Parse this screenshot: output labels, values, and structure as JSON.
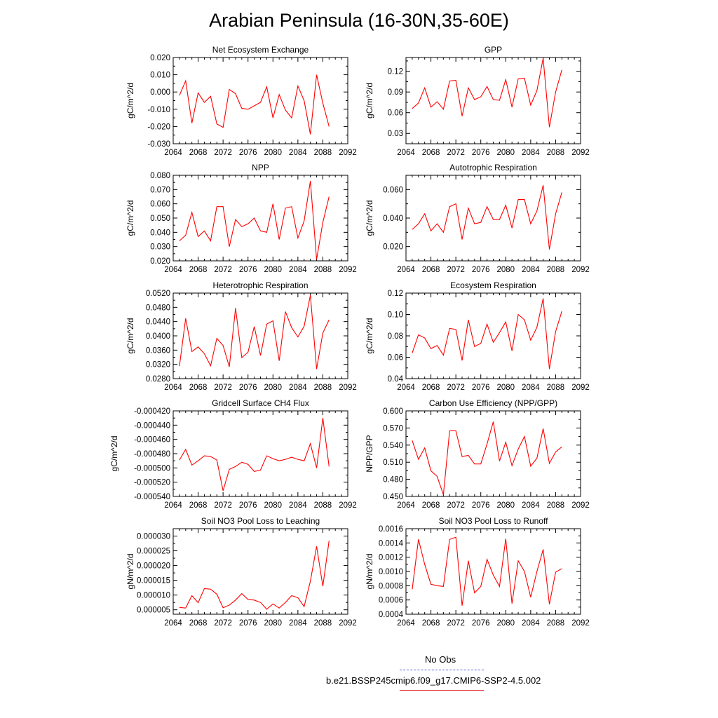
{
  "page": {
    "title": "Arabian Peninsula (16-30N,35-60E)"
  },
  "legend": {
    "obs_label": "No Obs",
    "obs_color": "#4b55d6",
    "model_label": "b.e21.BSSP245cmip6.f09_g17.CMIP6-SSP2-4.5.002",
    "model_color": "#e0303a"
  },
  "chart_data": [
    {
      "type": "line",
      "title": "Net Ecosystem Exchange",
      "ylabel": "gC/m^2/d",
      "xlim": [
        2064,
        2092
      ],
      "ylim": [
        -0.03,
        0.02
      ],
      "yticks": [
        -0.03,
        -0.02,
        -0.01,
        0.0,
        0.01,
        0.02
      ],
      "ytick_labels": [
        "-0.030",
        "-0.020",
        "-0.010",
        "0.000",
        "0.010",
        "0.020"
      ],
      "xticks": [
        2064,
        2068,
        2072,
        2076,
        2080,
        2084,
        2088,
        2092
      ],
      "x": [
        2065,
        2066,
        2067,
        2068,
        2069,
        2070,
        2071,
        2072,
        2073,
        2074,
        2075,
        2076,
        2077,
        2078,
        2079,
        2080,
        2081,
        2082,
        2083,
        2084,
        2085,
        2086,
        2087,
        2088,
        2089
      ],
      "series": [
        {
          "color": "#ff0000",
          "values": [
            -0.002,
            0.0065,
            -0.018,
            -0.0005,
            -0.006,
            -0.0025,
            -0.0185,
            -0.0205,
            0.0015,
            -0.001,
            -0.0095,
            -0.01,
            -0.008,
            -0.006,
            0.003,
            -0.015,
            -0.0015,
            -0.0105,
            -0.015,
            0.0035,
            -0.005,
            -0.0245,
            0.01,
            -0.0065,
            -0.02
          ]
        }
      ]
    },
    {
      "type": "line",
      "title": "GPP",
      "ylabel": "gC/m^2/d",
      "xlim": [
        2064,
        2092
      ],
      "ylim": [
        0.015,
        0.14
      ],
      "yticks": [
        0.03,
        0.06,
        0.09,
        0.12
      ],
      "ytick_labels": [
        "0.03",
        "0.06",
        "0.09",
        "0.12"
      ],
      "xticks": [
        2064,
        2068,
        2072,
        2076,
        2080,
        2084,
        2088,
        2092
      ],
      "x": [
        2065,
        2066,
        2067,
        2068,
        2069,
        2070,
        2071,
        2072,
        2073,
        2074,
        2075,
        2076,
        2077,
        2078,
        2079,
        2080,
        2081,
        2082,
        2083,
        2084,
        2085,
        2086,
        2087,
        2088,
        2089
      ],
      "series": [
        {
          "color": "#ff0000",
          "values": [
            0.066,
            0.074,
            0.096,
            0.068,
            0.076,
            0.065,
            0.106,
            0.107,
            0.055,
            0.096,
            0.079,
            0.083,
            0.098,
            0.079,
            0.078,
            0.108,
            0.068,
            0.109,
            0.11,
            0.071,
            0.092,
            0.139,
            0.039,
            0.09,
            0.122
          ]
        }
      ]
    },
    {
      "type": "line",
      "title": "NPP",
      "ylabel": "gC/m^2/d",
      "xlim": [
        2064,
        2092
      ],
      "ylim": [
        0.02,
        0.08
      ],
      "yticks": [
        0.02,
        0.03,
        0.04,
        0.05,
        0.06,
        0.07,
        0.08
      ],
      "ytick_labels": [
        "0.020",
        "0.030",
        "0.040",
        "0.050",
        "0.060",
        "0.070",
        "0.080"
      ],
      "xticks": [
        2064,
        2068,
        2072,
        2076,
        2080,
        2084,
        2088,
        2092
      ],
      "x": [
        2065,
        2066,
        2067,
        2068,
        2069,
        2070,
        2071,
        2072,
        2073,
        2074,
        2075,
        2076,
        2077,
        2078,
        2079,
        2080,
        2081,
        2082,
        2083,
        2084,
        2085,
        2086,
        2087,
        2088,
        2089
      ],
      "series": [
        {
          "color": "#ff0000",
          "values": [
            0.034,
            0.038,
            0.054,
            0.037,
            0.041,
            0.034,
            0.058,
            0.058,
            0.03,
            0.049,
            0.044,
            0.046,
            0.05,
            0.041,
            0.04,
            0.06,
            0.035,
            0.057,
            0.058,
            0.036,
            0.048,
            0.076,
            0.021,
            0.047,
            0.065
          ]
        }
      ]
    },
    {
      "type": "line",
      "title": "Autotrophic Respiration",
      "ylabel": "gC/m^2/d",
      "xlim": [
        2064,
        2092
      ],
      "ylim": [
        0.01,
        0.07
      ],
      "yticks": [
        0.02,
        0.04,
        0.06
      ],
      "ytick_labels": [
        "0.020",
        "0.040",
        "0.060"
      ],
      "xticks": [
        2064,
        2068,
        2072,
        2076,
        2080,
        2084,
        2088,
        2092
      ],
      "x": [
        2065,
        2066,
        2067,
        2068,
        2069,
        2070,
        2071,
        2072,
        2073,
        2074,
        2075,
        2076,
        2077,
        2078,
        2079,
        2080,
        2081,
        2082,
        2083,
        2084,
        2085,
        2086,
        2087,
        2088,
        2089
      ],
      "series": [
        {
          "color": "#ff0000",
          "values": [
            0.032,
            0.036,
            0.043,
            0.031,
            0.036,
            0.03,
            0.048,
            0.05,
            0.025,
            0.047,
            0.036,
            0.037,
            0.048,
            0.039,
            0.039,
            0.049,
            0.033,
            0.053,
            0.053,
            0.036,
            0.045,
            0.063,
            0.018,
            0.043,
            0.058
          ]
        }
      ]
    },
    {
      "type": "line",
      "title": "Heterotrophic Respiration",
      "ylabel": "gC/m^2/d",
      "xlim": [
        2064,
        2092
      ],
      "ylim": [
        0.028,
        0.052
      ],
      "yticks": [
        0.028,
        0.032,
        0.036,
        0.04,
        0.044,
        0.048,
        0.052
      ],
      "ytick_labels": [
        "0.0280",
        "0.0320",
        "0.0360",
        "0.0400",
        "0.0440",
        "0.0480",
        "0.0520"
      ],
      "xticks": [
        2064,
        2068,
        2072,
        2076,
        2080,
        2084,
        2088,
        2092
      ],
      "x": [
        2065,
        2066,
        2067,
        2068,
        2069,
        2070,
        2071,
        2072,
        2073,
        2074,
        2075,
        2076,
        2077,
        2078,
        2079,
        2080,
        2081,
        2082,
        2083,
        2084,
        2085,
        2086,
        2087,
        2088,
        2089
      ],
      "series": [
        {
          "color": "#ff0000",
          "values": [
            0.0315,
            0.0449,
            0.0356,
            0.0369,
            0.035,
            0.0316,
            0.0393,
            0.0373,
            0.0313,
            0.0478,
            0.0339,
            0.0354,
            0.0426,
            0.0345,
            0.0433,
            0.0442,
            0.033,
            0.0468,
            0.0423,
            0.0397,
            0.0427,
            0.0514,
            0.0307,
            0.0408,
            0.0445
          ]
        }
      ]
    },
    {
      "type": "line",
      "title": "Ecosystem Respiration",
      "ylabel": "gC/m^2/d",
      "xlim": [
        2064,
        2092
      ],
      "ylim": [
        0.04,
        0.12
      ],
      "yticks": [
        0.04,
        0.06,
        0.08,
        0.1,
        0.12
      ],
      "ytick_labels": [
        "0.04",
        "0.06",
        "0.08",
        "0.10",
        "0.12"
      ],
      "xticks": [
        2064,
        2068,
        2072,
        2076,
        2080,
        2084,
        2088,
        2092
      ],
      "x": [
        2065,
        2066,
        2067,
        2068,
        2069,
        2070,
        2071,
        2072,
        2073,
        2074,
        2075,
        2076,
        2077,
        2078,
        2079,
        2080,
        2081,
        2082,
        2083,
        2084,
        2085,
        2086,
        2087,
        2088,
        2089
      ],
      "series": [
        {
          "color": "#ff0000",
          "values": [
            0.064,
            0.081,
            0.078,
            0.068,
            0.071,
            0.062,
            0.087,
            0.086,
            0.057,
            0.095,
            0.07,
            0.073,
            0.091,
            0.074,
            0.083,
            0.093,
            0.066,
            0.1,
            0.095,
            0.076,
            0.088,
            0.115,
            0.049,
            0.084,
            0.103
          ]
        }
      ]
    },
    {
      "type": "line",
      "title": "Gridcell Surface CH4 Flux",
      "ylabel": "gC/m^2/d",
      "xlim": [
        2064,
        2092
      ],
      "ylim": [
        -0.00054,
        -0.00042
      ],
      "yticks": [
        -0.00054,
        -0.00052,
        -0.0005,
        -0.00048,
        -0.00046,
        -0.00044,
        -0.00042
      ],
      "ytick_labels": [
        "-0.000540",
        "-0.000520",
        "-0.000500",
        "-0.000480",
        "-0.000460",
        "-0.000440",
        "-0.000420"
      ],
      "xticks": [
        2064,
        2068,
        2072,
        2076,
        2080,
        2084,
        2088,
        2092
      ],
      "x": [
        2065,
        2066,
        2067,
        2068,
        2069,
        2070,
        2071,
        2072,
        2073,
        2074,
        2075,
        2076,
        2077,
        2078,
        2079,
        2080,
        2081,
        2082,
        2083,
        2084,
        2085,
        2086,
        2087,
        2088,
        2089
      ],
      "series": [
        {
          "color": "#ff0000",
          "values": [
            -0.000489,
            -0.000474,
            -0.000496,
            -0.00049,
            -0.000483,
            -0.000484,
            -0.000489,
            -0.000532,
            -0.000502,
            -0.000498,
            -0.000492,
            -0.000495,
            -0.000505,
            -0.000503,
            -0.000483,
            -0.000487,
            -0.00049,
            -0.000488,
            -0.000485,
            -0.000488,
            -0.00049,
            -0.000466,
            -0.0005,
            -0.00043,
            -0.000498
          ]
        }
      ]
    },
    {
      "type": "line",
      "title": "Carbon Use Efficiency (NPP/GPP)",
      "ylabel": "NPP/GPP",
      "xlim": [
        2064,
        2092
      ],
      "ylim": [
        0.45,
        0.6
      ],
      "yticks": [
        0.45,
        0.48,
        0.51,
        0.54,
        0.57,
        0.6
      ],
      "ytick_labels": [
        "0.450",
        "0.480",
        "0.510",
        "0.540",
        "0.570",
        "0.600"
      ],
      "xticks": [
        2064,
        2068,
        2072,
        2076,
        2080,
        2084,
        2088,
        2092
      ],
      "x": [
        2065,
        2066,
        2067,
        2068,
        2069,
        2070,
        2071,
        2072,
        2073,
        2074,
        2075,
        2076,
        2077,
        2078,
        2079,
        2080,
        2081,
        2082,
        2083,
        2084,
        2085,
        2086,
        2087,
        2088,
        2089
      ],
      "series": [
        {
          "color": "#ff0000",
          "values": [
            0.548,
            0.515,
            0.535,
            0.495,
            0.485,
            0.453,
            0.565,
            0.565,
            0.52,
            0.522,
            0.507,
            0.507,
            0.542,
            0.581,
            0.512,
            0.545,
            0.504,
            0.533,
            0.555,
            0.503,
            0.517,
            0.569,
            0.508,
            0.528,
            0.537
          ]
        }
      ]
    },
    {
      "type": "line",
      "title": "Soil NO3 Pool Loss to Leaching",
      "ylabel": "gN/m^2/d",
      "xlim": [
        2064,
        2092
      ],
      "ylim": [
        3.5e-06,
        3.25e-05
      ],
      "yticks": [
        5e-06,
        1e-05,
        1.5e-05,
        2e-05,
        2.5e-05,
        3e-05
      ],
      "ytick_labels": [
        "0.000005",
        "0.000010",
        "0.000015",
        "0.000020",
        "0.000025",
        "0.000030"
      ],
      "xticks": [
        2064,
        2068,
        2072,
        2076,
        2080,
        2084,
        2088,
        2092
      ],
      "x": [
        2065,
        2066,
        2067,
        2068,
        2069,
        2070,
        2071,
        2072,
        2073,
        2074,
        2075,
        2076,
        2077,
        2078,
        2079,
        2080,
        2081,
        2082,
        2083,
        2084,
        2085,
        2086,
        2087,
        2088,
        2089
      ],
      "series": [
        {
          "color": "#ff0000",
          "values": [
            5.8e-06,
            5.6e-06,
            9.8e-06,
            7.4e-06,
            1.22e-05,
            1.2e-05,
            1.03e-05,
            5.7e-06,
            6.6e-06,
            8.3e-06,
            1.05e-05,
            8.5e-06,
            8.3e-06,
            7.5e-06,
            5.2e-06,
            7e-06,
            5.6e-06,
            7.5e-06,
            9.8e-06,
            9.1e-06,
            6.1e-06,
            1.47e-05,
            2.65e-05,
            1.3e-05,
            2.84e-05
          ]
        }
      ]
    },
    {
      "type": "line",
      "title": "Soil NO3 Pool Loss to Runoff",
      "ylabel": "gN/m^2/d",
      "xlim": [
        2064,
        2092
      ],
      "ylim": [
        0.0004,
        0.0016
      ],
      "yticks": [
        0.0004,
        0.0006,
        0.0008,
        0.001,
        0.0012,
        0.0014,
        0.0016
      ],
      "ytick_labels": [
        "0.0004",
        "0.0006",
        "0.0008",
        "0.0010",
        "0.0012",
        "0.0014",
        "0.0016"
      ],
      "xticks": [
        2064,
        2068,
        2072,
        2076,
        2080,
        2084,
        2088,
        2092
      ],
      "x": [
        2065,
        2066,
        2067,
        2068,
        2069,
        2070,
        2071,
        2072,
        2073,
        2074,
        2075,
        2076,
        2077,
        2078,
        2079,
        2080,
        2081,
        2082,
        2083,
        2084,
        2085,
        2086,
        2087,
        2088,
        2089
      ],
      "series": [
        {
          "color": "#ff0000",
          "values": [
            0.00075,
            0.00145,
            0.0011,
            0.00082,
            0.0008,
            0.00079,
            0.00145,
            0.00148,
            0.00052,
            0.00115,
            0.0007,
            0.00079,
            0.00117,
            0.00095,
            0.00079,
            0.00146,
            0.00055,
            0.00115,
            0.001,
            0.00064,
            0.001,
            0.00131,
            0.00054,
            0.00099,
            0.00104
          ]
        }
      ]
    }
  ]
}
